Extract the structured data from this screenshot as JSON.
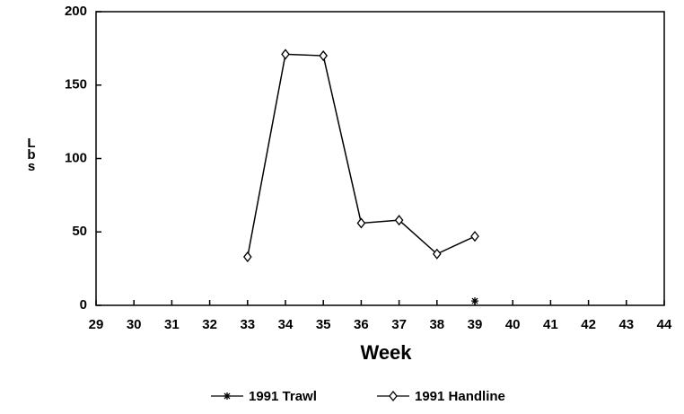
{
  "chart_data": {
    "type": "line",
    "xlabel": "Week",
    "ylabel": "Lbs",
    "xlim": [
      29,
      44
    ],
    "xticks": [
      29,
      30,
      31,
      32,
      33,
      34,
      35,
      36,
      37,
      38,
      39,
      40,
      41,
      42,
      43,
      44
    ],
    "ylim": [
      0,
      200
    ],
    "yticks": [
      0,
      50,
      100,
      150,
      200
    ],
    "legend": "bottom",
    "series": [
      {
        "name": "1991 Trawl",
        "color": "#000000",
        "marker": "star",
        "x": [
          39
        ],
        "values": [
          3
        ]
      },
      {
        "name": "1991 Handline",
        "color": "#000000",
        "marker": "diamond",
        "x": [
          33,
          34,
          35,
          36,
          37,
          38,
          39
        ],
        "values": [
          33,
          171,
          170,
          56,
          58,
          35,
          47
        ]
      }
    ]
  }
}
